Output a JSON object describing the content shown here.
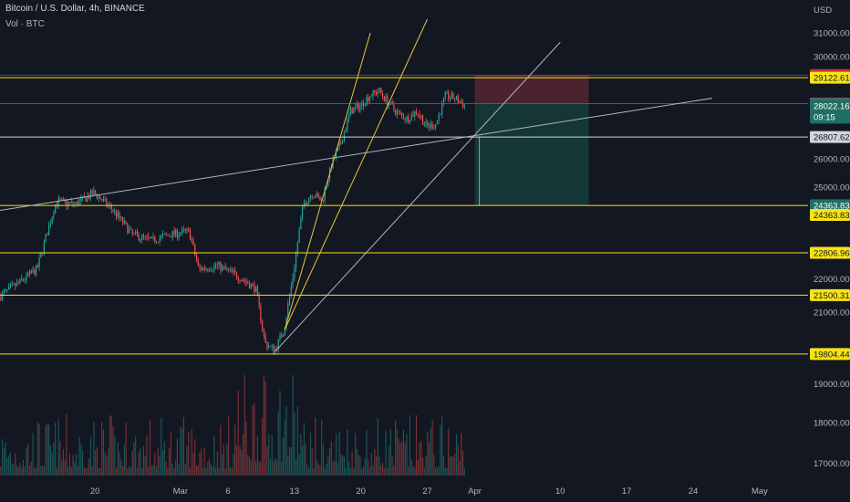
{
  "header": {
    "symbol_title": "Bitcoin / U.S. Dollar, 4h, BINANCE",
    "volume_label": "Vol · BTC"
  },
  "colors": {
    "background": "#131722",
    "up": "#26a69a",
    "down": "#ef5350",
    "horizontal_line": "#f7e315",
    "trend_line": "#b2b5be",
    "fan_line": "#e8c53b",
    "stop_zone": "#7a2e3a",
    "target_zone": "#17453f"
  },
  "chart_data": {
    "type": "candlestick",
    "symbol": "BTCUSD",
    "timeframe": "4h",
    "exchange": "BINANCE",
    "y_axis": {
      "unit": "USD",
      "ylim": [
        16800,
        31600
      ],
      "scale": "log",
      "tick_labels": [
        "31000.00",
        "30000.00",
        "26000.00",
        "25000.00",
        "22000.00",
        "21000.00",
        "19000.00",
        "18000.00",
        "17000.00"
      ],
      "tick_values": [
        31000,
        30000,
        26000,
        25000,
        22000,
        21000,
        19000,
        18000,
        17000
      ]
    },
    "x_axis": {
      "tick_labels": [
        "20",
        "Mar",
        "6",
        "13",
        "20",
        "27",
        "Apr",
        "10",
        "17",
        "24",
        "May"
      ]
    },
    "price_path": [
      {
        "date": "2023-02-10",
        "price": 21450
      },
      {
        "date": "2023-02-12",
        "price": 21850
      },
      {
        "date": "2023-02-14",
        "price": 22300
      },
      {
        "date": "2023-02-16",
        "price": 24500
      },
      {
        "date": "2023-02-18",
        "price": 24400
      },
      {
        "date": "2023-02-20",
        "price": 24800
      },
      {
        "date": "2023-02-22",
        "price": 24200
      },
      {
        "date": "2023-02-24",
        "price": 23400
      },
      {
        "date": "2023-02-26",
        "price": 23200
      },
      {
        "date": "2023-02-28",
        "price": 23400
      },
      {
        "date": "2023-03-02",
        "price": 23500
      },
      {
        "date": "2023-03-03",
        "price": 22300
      },
      {
        "date": "2023-03-05",
        "price": 22400
      },
      {
        "date": "2023-03-07",
        "price": 22100
      },
      {
        "date": "2023-03-09",
        "price": 21700
      },
      {
        "date": "2023-03-10",
        "price": 20100
      },
      {
        "date": "2023-03-11",
        "price": 19900
      },
      {
        "date": "2023-03-12",
        "price": 20500
      },
      {
        "date": "2023-03-13",
        "price": 22200
      },
      {
        "date": "2023-03-14",
        "price": 24400
      },
      {
        "date": "2023-03-15",
        "price": 24800
      },
      {
        "date": "2023-03-16",
        "price": 24500
      },
      {
        "date": "2023-03-17",
        "price": 25800
      },
      {
        "date": "2023-03-18",
        "price": 26600
      },
      {
        "date": "2023-03-19",
        "price": 27800
      },
      {
        "date": "2023-03-20",
        "price": 28000
      },
      {
        "date": "2023-03-21",
        "price": 28400
      },
      {
        "date": "2023-03-22",
        "price": 28600
      },
      {
        "date": "2023-03-23",
        "price": 28100
      },
      {
        "date": "2023-03-24",
        "price": 27700
      },
      {
        "date": "2023-03-25",
        "price": 27500
      },
      {
        "date": "2023-03-26",
        "price": 27800
      },
      {
        "date": "2023-03-27",
        "price": 27200
      },
      {
        "date": "2023-03-28",
        "price": 27300
      },
      {
        "date": "2023-03-29",
        "price": 28400
      },
      {
        "date": "2023-03-30",
        "price": 28300
      },
      {
        "date": "2023-03-31",
        "price": 28022
      }
    ],
    "horizontal_levels": [
      {
        "price": 29122.61,
        "label": "29122.61"
      },
      {
        "price": 26807.62,
        "label": "26807.62"
      },
      {
        "price": 24363.83,
        "label": "24363.83"
      },
      {
        "price": 22806.96,
        "label": "22806.96"
      },
      {
        "price": 21500.31,
        "label": "21500.31"
      },
      {
        "price": 19804.44,
        "label": "19804.44"
      }
    ],
    "price_labels": [
      {
        "price": 29229.03,
        "label": "29229.03",
        "kind": "stop"
      },
      {
        "price": 28089.19,
        "label": "28089.19",
        "kind": "entry"
      },
      {
        "price": 28022.16,
        "label": "28022.16",
        "kind": "last"
      },
      {
        "price": 24363.83,
        "label": "24363.83",
        "kind": "target"
      }
    ],
    "last_price": {
      "price": 28022.16,
      "label": "28022.16",
      "countdown": "09:15"
    },
    "position": {
      "side": "short",
      "start_date": "2023-04-01",
      "end_date": "2023-04-13",
      "entry": 28089.19,
      "stop": 29229.03,
      "target": 24363.83
    },
    "trend_lines": [
      {
        "from": {
          "date": "2023-02-10",
          "price": 24200
        },
        "to": {
          "date": "2023-04-26",
          "price": 28300
        }
      },
      {
        "from": {
          "date": "2023-03-11",
          "price": 19880
        },
        "to": {
          "date": "2023-04-10",
          "price": 30600
        }
      }
    ],
    "fan_lines": [
      {
        "from": {
          "date": "2023-03-12",
          "price": 20500
        },
        "to": {
          "date": "2023-03-21",
          "price": 31000
        }
      },
      {
        "from": {
          "date": "2023-03-12",
          "price": 20500
        },
        "to": {
          "date": "2023-03-27",
          "price": 31600
        }
      }
    ]
  }
}
